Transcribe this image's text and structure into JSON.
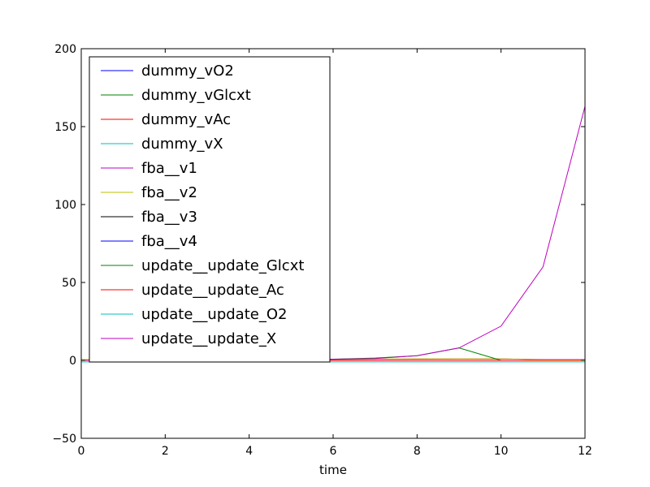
{
  "chart_data": {
    "type": "line",
    "title": "",
    "xlabel": "time",
    "ylabel": "",
    "xlim": [
      0,
      12
    ],
    "ylim": [
      -50,
      200
    ],
    "xticks": [
      0,
      2,
      4,
      6,
      8,
      10,
      12
    ],
    "xtick_labels": [
      "0",
      "2",
      "4",
      "6",
      "8",
      "10",
      "12"
    ],
    "yticks": [
      -50,
      0,
      50,
      100,
      150,
      200
    ],
    "ytick_labels": [
      "−50",
      "0",
      "50",
      "100",
      "150",
      "200"
    ],
    "grid": false,
    "legend_position": "upper-left",
    "x": [
      0,
      1,
      2,
      3,
      4,
      5,
      6,
      7,
      8,
      9,
      10,
      11,
      12
    ],
    "series": [
      {
        "name": "dummy_vO2",
        "color": "#0000ff",
        "values": [
          0,
          0,
          0,
          0,
          0,
          0,
          0,
          0,
          0,
          0,
          0,
          0,
          0
        ]
      },
      {
        "name": "dummy_vGlcxt",
        "color": "#008000",
        "values": [
          0,
          0,
          0,
          0,
          0,
          0,
          0,
          0,
          0,
          0,
          0,
          0,
          0
        ]
      },
      {
        "name": "dummy_vAc",
        "color": "#ff0000",
        "values": [
          0,
          0,
          0,
          0,
          0,
          0,
          0,
          0,
          0,
          0,
          0,
          0,
          0
        ]
      },
      {
        "name": "dummy_vX",
        "color": "#00bfbf",
        "values": [
          0,
          0,
          0,
          0,
          0,
          0,
          0,
          0,
          0,
          0,
          0,
          0,
          0
        ]
      },
      {
        "name": "fba__v1",
        "color": "#bf00bf",
        "values": [
          0.1,
          0.15,
          0.2,
          0.3,
          0.4,
          0.5,
          0.6,
          0.7,
          0.8,
          0.9,
          1.0,
          0.5,
          0.5
        ]
      },
      {
        "name": "fba__v2",
        "color": "#bfbf00",
        "values": [
          0.5,
          0.5,
          0.5,
          0.5,
          0.5,
          0.6,
          0.7,
          0.8,
          1.0,
          1.0,
          1.0,
          0.3,
          0.3
        ]
      },
      {
        "name": "fba__v3",
        "color": "#000000",
        "values": [
          0,
          0,
          0,
          0,
          0,
          0,
          0,
          0,
          0,
          0,
          0,
          0,
          0
        ]
      },
      {
        "name": "fba__v4",
        "color": "#0000ff",
        "values": [
          0,
          0,
          0,
          0,
          0,
          0,
          0,
          0,
          0,
          0,
          0,
          0,
          0
        ]
      },
      {
        "name": "update__update_Glcxt",
        "color": "#008000",
        "values": [
          0,
          0,
          0.1,
          0.2,
          0.3,
          0.5,
          0.8,
          1.5,
          3,
          8,
          0,
          0,
          0
        ]
      },
      {
        "name": "update__update_Ac",
        "color": "#ff0000",
        "values": [
          0,
          0,
          0,
          0,
          0,
          0,
          0,
          0,
          0,
          0,
          0,
          0,
          0
        ]
      },
      {
        "name": "update__update_O2",
        "color": "#00bfbf",
        "values": [
          -1,
          -1,
          -1,
          -1,
          -1,
          -1,
          -1,
          -1,
          -1,
          -1,
          -1,
          -1,
          -1
        ]
      },
      {
        "name": "update__update_X",
        "color": "#bf00bf",
        "values": [
          0.05,
          0.1,
          0.15,
          0.25,
          0.4,
          0.5,
          0.7,
          1.2,
          3,
          8,
          22,
          60,
          163
        ]
      }
    ]
  }
}
